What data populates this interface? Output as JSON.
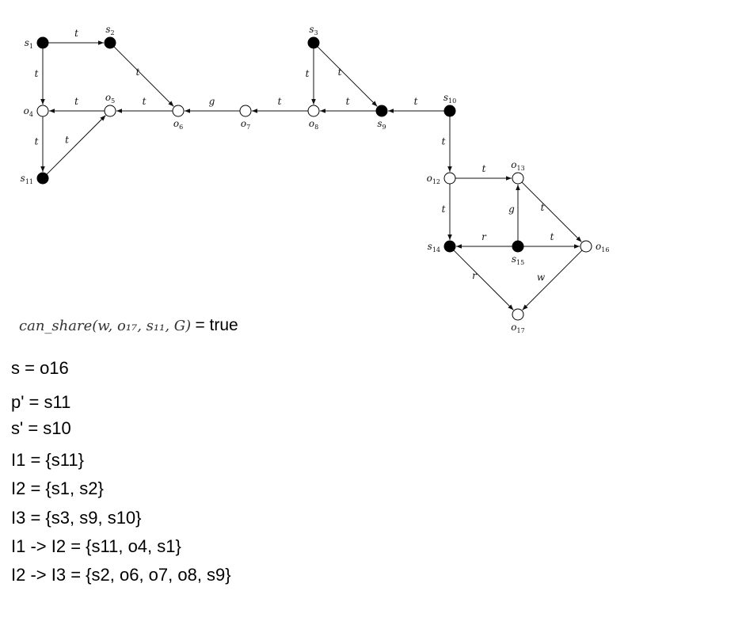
{
  "graph": {
    "nodes": [
      {
        "id": "s1",
        "name": "s",
        "sub": "1",
        "filled": true
      },
      {
        "id": "s2",
        "name": "s",
        "sub": "2",
        "filled": true
      },
      {
        "id": "s3",
        "name": "s",
        "sub": "3",
        "filled": true
      },
      {
        "id": "o4",
        "name": "o",
        "sub": "4",
        "filled": false
      },
      {
        "id": "o5",
        "name": "o",
        "sub": "5",
        "filled": false
      },
      {
        "id": "o6",
        "name": "o",
        "sub": "6",
        "filled": false
      },
      {
        "id": "o7",
        "name": "o",
        "sub": "7",
        "filled": false
      },
      {
        "id": "o8",
        "name": "o",
        "sub": "8",
        "filled": false
      },
      {
        "id": "s9",
        "name": "s",
        "sub": "9",
        "filled": true
      },
      {
        "id": "s10",
        "name": "s",
        "sub": "10",
        "filled": true
      },
      {
        "id": "s11",
        "name": "s",
        "sub": "11",
        "filled": true
      },
      {
        "id": "o12",
        "name": "o",
        "sub": "12",
        "filled": false
      },
      {
        "id": "o13",
        "name": "o",
        "sub": "13",
        "filled": false
      },
      {
        "id": "s14",
        "name": "s",
        "sub": "14",
        "filled": true
      },
      {
        "id": "s15",
        "name": "s",
        "sub": "15",
        "filled": true
      },
      {
        "id": "o16",
        "name": "o",
        "sub": "16",
        "filled": false
      },
      {
        "id": "o17",
        "name": "o",
        "sub": "17",
        "filled": false
      }
    ],
    "edges": [
      {
        "from": "s1",
        "to": "s2",
        "label": "t"
      },
      {
        "from": "s1",
        "to": "o4",
        "label": "t"
      },
      {
        "from": "s2",
        "to": "o6",
        "label": "t"
      },
      {
        "from": "o5",
        "to": "o4",
        "label": "t"
      },
      {
        "from": "o6",
        "to": "o5",
        "label": "t"
      },
      {
        "from": "o7",
        "to": "o6",
        "label": "g"
      },
      {
        "from": "o8",
        "to": "o7",
        "label": "t"
      },
      {
        "from": "s9",
        "to": "o8",
        "label": "t"
      },
      {
        "from": "s10",
        "to": "s9",
        "label": "t"
      },
      {
        "from": "s3",
        "to": "o8",
        "label": "t"
      },
      {
        "from": "s3",
        "to": "s9",
        "label": "t"
      },
      {
        "from": "o4",
        "to": "s11",
        "label": "t"
      },
      {
        "from": "s11",
        "to": "o5",
        "label": "t"
      },
      {
        "from": "s10",
        "to": "o12",
        "label": "t"
      },
      {
        "from": "o12",
        "to": "o13",
        "label": "t"
      },
      {
        "from": "o12",
        "to": "s14",
        "label": "t"
      },
      {
        "from": "s15",
        "to": "o13",
        "label": "g"
      },
      {
        "from": "o13",
        "to": "o16",
        "label": "t"
      },
      {
        "from": "s15",
        "to": "s14",
        "label": "r"
      },
      {
        "from": "s15",
        "to": "o16",
        "label": "t"
      },
      {
        "from": "s14",
        "to": "o17",
        "label": "r"
      },
      {
        "from": "o16",
        "to": "o17",
        "label": "w"
      }
    ]
  },
  "predicate": {
    "expression": "can_share(w, o₁₇, s₁₁, G)",
    "result": "= true"
  },
  "notes": [
    "s = o16",
    "p' = s11",
    "s' = s10",
    "I1 = {s11}",
    "I2 = {s1, s2}",
    "I3 = {s3, s9, s10}",
    "I1 -> I2 = {s11, o4, s1}",
    "I2 -> I3 = {s2, o6, o7, o8, s9}"
  ]
}
